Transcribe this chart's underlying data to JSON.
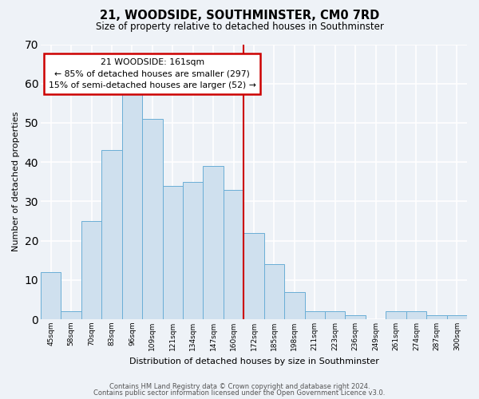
{
  "title": "21, WOODSIDE, SOUTHMINSTER, CM0 7RD",
  "subtitle": "Size of property relative to detached houses in Southminster",
  "xlabel": "Distribution of detached houses by size in Southminster",
  "ylabel": "Number of detached properties",
  "footer1": "Contains HM Land Registry data © Crown copyright and database right 2024.",
  "footer2": "Contains public sector information licensed under the Open Government Licence v3.0.",
  "bin_labels": [
    "45sqm",
    "58sqm",
    "70sqm",
    "83sqm",
    "96sqm",
    "109sqm",
    "121sqm",
    "134sqm",
    "147sqm",
    "160sqm",
    "172sqm",
    "185sqm",
    "198sqm",
    "211sqm",
    "223sqm",
    "236sqm",
    "249sqm",
    "261sqm",
    "274sqm",
    "287sqm",
    "300sqm"
  ],
  "bar_values": [
    12,
    2,
    25,
    43,
    59,
    51,
    34,
    35,
    39,
    33,
    22,
    14,
    7,
    2,
    2,
    1,
    0,
    2,
    2,
    1,
    1
  ],
  "bar_color": "#cfe0ee",
  "bar_edge_color": "#6aaed6",
  "property_line_x": 9.5,
  "annotation_line_color": "#cc0000",
  "annotation_text_line1": "21 WOODSIDE: 161sqm",
  "annotation_text_line2": "← 85% of detached houses are smaller (297)",
  "annotation_text_line3": "15% of semi-detached houses are larger (52) →",
  "ylim": [
    0,
    70
  ],
  "yticks": [
    0,
    10,
    20,
    30,
    40,
    50,
    60,
    70
  ],
  "background_color": "#eef2f7",
  "plot_background": "#eef2f7",
  "grid_color": "#ffffff"
}
